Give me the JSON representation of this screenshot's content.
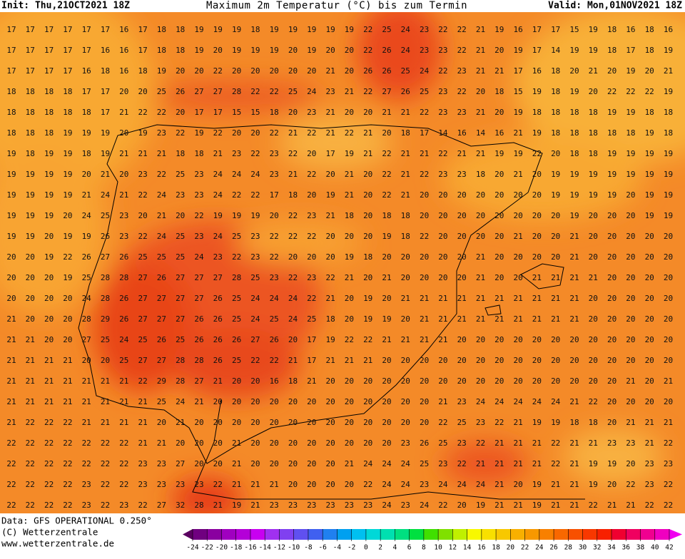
{
  "header": {
    "init": "Init: Thu,21OCT2021 18Z",
    "title": "Maximum 2m Temperatur (°C) bis zum Termin",
    "valid": "Valid: Mon,01NOV2021 18Z"
  },
  "footer": {
    "data_source": "Data: GFS OPERATIONAL 0.250°",
    "copyright": "(C) Wetterzentrale",
    "url": "www.wetterzentrale.de"
  },
  "colorbar": {
    "ticks": [
      -24,
      -22,
      -20,
      -18,
      -16,
      -14,
      -12,
      -10,
      -8,
      -6,
      -4,
      -2,
      0,
      2,
      4,
      6,
      8,
      10,
      12,
      14,
      16,
      18,
      20,
      22,
      24,
      26,
      28,
      30,
      32,
      34,
      36,
      38,
      40,
      42
    ],
    "colors": [
      "#5a0060",
      "#700080",
      "#8a00a0",
      "#a000c0",
      "#b400d8",
      "#c800f0",
      "#a030f0",
      "#8040f0",
      "#6050f0",
      "#4060f0",
      "#2080f0",
      "#00a0f0",
      "#00c0f0",
      "#00d8d8",
      "#00e0b0",
      "#00e080",
      "#00e040",
      "#40e000",
      "#80e000",
      "#c0f000",
      "#f8f800",
      "#f8e000",
      "#f8c800",
      "#f8b000",
      "#f89800",
      "#f88000",
      "#f86800",
      "#f85000",
      "#f83800",
      "#f82000",
      "#f00030",
      "#f00060",
      "#f00090",
      "#f000c0",
      "#f000f0"
    ]
  },
  "grid": {
    "rows": [
      [
        17,
        17,
        17,
        17,
        17,
        17,
        16,
        17,
        18,
        18,
        19,
        19,
        19,
        18,
        19,
        19,
        19,
        19,
        19,
        22,
        25,
        24,
        23,
        22,
        22,
        21,
        19,
        16,
        17,
        17,
        15,
        19,
        18,
        16,
        18,
        16
      ],
      [
        17,
        17,
        17,
        17,
        17,
        16,
        16,
        17,
        18,
        18,
        19,
        20,
        19,
        19,
        19,
        20,
        19,
        20,
        20,
        22,
        26,
        24,
        23,
        23,
        22,
        21,
        20,
        19,
        17,
        14,
        19,
        19,
        18,
        17,
        18,
        19
      ],
      [
        17,
        17,
        17,
        17,
        16,
        18,
        16,
        18,
        19,
        20,
        20,
        22,
        20,
        20,
        20,
        20,
        20,
        21,
        20,
        26,
        26,
        25,
        24,
        22,
        23,
        21,
        21,
        17,
        16,
        18,
        20,
        21,
        20,
        19,
        20,
        21
      ],
      [
        18,
        18,
        18,
        18,
        17,
        17,
        20,
        20,
        25,
        26,
        27,
        27,
        28,
        22,
        22,
        25,
        24,
        23,
        21,
        22,
        27,
        26,
        25,
        23,
        22,
        20,
        18,
        15,
        19,
        18,
        19,
        20,
        22,
        22,
        22,
        19
      ],
      [
        18,
        18,
        18,
        18,
        18,
        17,
        21,
        22,
        22,
        20,
        17,
        17,
        15,
        15,
        18,
        20,
        23,
        21,
        20,
        20,
        21,
        21,
        22,
        23,
        23,
        21,
        20,
        19,
        18,
        18,
        18,
        18,
        19,
        19,
        18,
        18
      ],
      [
        18,
        18,
        18,
        19,
        19,
        19,
        20,
        19,
        23,
        22,
        19,
        22,
        20,
        20,
        22,
        21,
        22,
        21,
        22,
        21,
        20,
        18,
        17,
        14,
        16,
        14,
        16,
        21,
        19,
        18,
        18,
        18,
        18,
        18,
        19,
        18
      ],
      [
        19,
        18,
        19,
        19,
        18,
        19,
        21,
        21,
        21,
        18,
        18,
        21,
        23,
        22,
        23,
        22,
        20,
        17,
        19,
        21,
        22,
        21,
        21,
        22,
        21,
        21,
        19,
        19,
        22,
        20,
        18,
        18,
        19,
        19,
        19,
        19
      ],
      [
        19,
        19,
        19,
        19,
        20,
        21,
        20,
        23,
        22,
        25,
        23,
        24,
        24,
        24,
        23,
        21,
        22,
        20,
        21,
        20,
        22,
        21,
        22,
        23,
        23,
        18,
        20,
        21,
        20,
        19,
        19,
        19,
        19,
        19,
        19,
        19
      ],
      [
        19,
        19,
        19,
        19,
        21,
        24,
        21,
        22,
        24,
        23,
        23,
        24,
        22,
        22,
        17,
        18,
        20,
        19,
        21,
        20,
        22,
        21,
        20,
        20,
        20,
        20,
        20,
        20,
        20,
        19,
        19,
        19,
        19,
        20,
        19,
        19
      ],
      [
        19,
        19,
        19,
        20,
        24,
        25,
        23,
        20,
        21,
        20,
        22,
        19,
        19,
        19,
        20,
        22,
        23,
        21,
        18,
        20,
        18,
        18,
        20,
        20,
        20,
        20,
        20,
        20,
        20,
        20,
        19,
        20,
        20,
        20,
        19,
        19
      ],
      [
        19,
        19,
        20,
        19,
        19,
        26,
        23,
        22,
        24,
        25,
        23,
        24,
        25,
        23,
        22,
        22,
        22,
        20,
        20,
        20,
        19,
        18,
        22,
        20,
        20,
        20,
        20,
        21,
        20,
        20,
        21,
        20,
        20,
        20,
        20,
        20
      ],
      [
        20,
        20,
        19,
        22,
        26,
        27,
        26,
        25,
        25,
        25,
        24,
        23,
        22,
        23,
        22,
        20,
        20,
        20,
        19,
        18,
        20,
        20,
        20,
        20,
        20,
        21,
        20,
        20,
        20,
        20,
        21,
        20,
        20,
        20,
        20,
        20
      ],
      [
        20,
        20,
        20,
        19,
        25,
        28,
        28,
        27,
        26,
        27,
        27,
        27,
        28,
        25,
        23,
        22,
        23,
        22,
        21,
        20,
        21,
        20,
        20,
        20,
        20,
        21,
        20,
        20,
        21,
        21,
        21,
        21,
        20,
        20,
        20,
        20
      ],
      [
        20,
        20,
        20,
        20,
        24,
        28,
        26,
        27,
        27,
        27,
        27,
        26,
        25,
        24,
        24,
        24,
        22,
        21,
        20,
        19,
        20,
        21,
        21,
        21,
        21,
        21,
        21,
        21,
        21,
        21,
        21,
        20,
        20,
        20,
        20,
        20
      ],
      [
        21,
        20,
        20,
        20,
        28,
        29,
        26,
        27,
        27,
        27,
        26,
        26,
        25,
        24,
        25,
        24,
        25,
        18,
        20,
        19,
        19,
        20,
        21,
        21,
        21,
        21,
        21,
        21,
        21,
        21,
        21,
        20,
        20,
        20,
        20,
        20
      ],
      [
        21,
        21,
        20,
        20,
        27,
        25,
        24,
        25,
        26,
        25,
        26,
        26,
        26,
        27,
        26,
        20,
        17,
        19,
        22,
        22,
        21,
        21,
        21,
        21,
        20,
        20,
        20,
        20,
        20,
        20,
        20,
        20,
        20,
        20,
        20,
        20
      ],
      [
        21,
        21,
        21,
        21,
        20,
        20,
        25,
        27,
        27,
        28,
        28,
        26,
        25,
        22,
        22,
        21,
        17,
        21,
        21,
        21,
        20,
        20,
        20,
        20,
        20,
        20,
        20,
        20,
        20,
        20,
        20,
        20,
        20,
        20,
        20,
        20
      ],
      [
        21,
        21,
        21,
        21,
        21,
        21,
        21,
        22,
        29,
        28,
        27,
        21,
        20,
        20,
        16,
        18,
        21,
        20,
        20,
        20,
        20,
        20,
        20,
        20,
        20,
        20,
        20,
        20,
        20,
        20,
        20,
        20,
        20,
        21,
        20,
        21
      ],
      [
        21,
        21,
        21,
        21,
        21,
        21,
        21,
        21,
        25,
        24,
        21,
        20,
        20,
        20,
        20,
        20,
        20,
        20,
        20,
        20,
        20,
        20,
        20,
        21,
        23,
        24,
        24,
        24,
        24,
        24,
        21,
        22,
        20,
        20,
        20,
        20
      ],
      [
        21,
        22,
        22,
        22,
        21,
        21,
        21,
        21,
        20,
        21,
        20,
        20,
        20,
        20,
        20,
        20,
        20,
        20,
        20,
        20,
        20,
        20,
        20,
        22,
        25,
        23,
        22,
        21,
        19,
        19,
        18,
        18,
        20,
        21,
        21,
        21
      ],
      [
        22,
        22,
        22,
        22,
        22,
        22,
        22,
        21,
        21,
        20,
        20,
        20,
        21,
        20,
        20,
        20,
        20,
        20,
        20,
        20,
        20,
        23,
        26,
        25,
        23,
        22,
        21,
        21,
        21,
        22,
        21,
        21,
        23,
        23,
        21,
        22
      ],
      [
        22,
        22,
        22,
        22,
        22,
        22,
        22,
        23,
        23,
        27,
        20,
        20,
        21,
        20,
        20,
        20,
        20,
        20,
        21,
        24,
        24,
        24,
        25,
        23,
        22,
        21,
        21,
        21,
        21,
        22,
        21,
        19,
        19,
        20,
        23,
        23
      ],
      [
        22,
        22,
        22,
        22,
        23,
        22,
        22,
        23,
        23,
        23,
        23,
        22,
        21,
        21,
        21,
        20,
        20,
        20,
        20,
        22,
        24,
        24,
        23,
        24,
        24,
        24,
        21,
        20,
        19,
        21,
        21,
        19,
        20,
        22,
        23,
        22
      ],
      [
        22,
        22,
        22,
        22,
        23,
        22,
        23,
        22,
        27,
        32,
        28,
        21,
        19,
        21,
        23,
        23,
        23,
        23,
        23,
        23,
        24,
        23,
        24,
        22,
        20,
        19,
        21,
        21,
        19,
        21,
        21,
        22,
        21,
        21,
        22,
        22
      ]
    ]
  }
}
